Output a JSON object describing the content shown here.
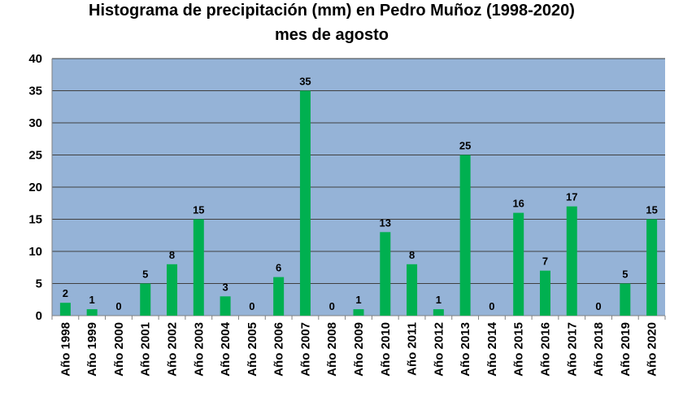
{
  "chart_data": {
    "type": "bar",
    "title": "Histograma de precipitación (mm) en Pedro Muñoz (1998-2020)",
    "subtitle": "mes de agosto",
    "xlabel": "",
    "ylabel": "",
    "ylim": [
      0,
      40
    ],
    "yticks": [
      0,
      5,
      10,
      15,
      20,
      25,
      30,
      35,
      40
    ],
    "grid": true,
    "legend": "none",
    "categories": [
      "Año 1998",
      "Año 1999",
      "Año 2000",
      "Año 2001",
      "Año 2002",
      "Año 2003",
      "Año 2004",
      "Año 2005",
      "Año 2006",
      "Año 2007",
      "Año 2008",
      "Año 2009",
      "Año 2010",
      "Año 2011",
      "Año 2012",
      "Año 2013",
      "Año 2014",
      "Año 2015",
      "Año 2016",
      "Año 2017",
      "Año 2018",
      "Año 2019",
      "Año 2020"
    ],
    "values": [
      2,
      1,
      0,
      5,
      8,
      15,
      3,
      0,
      6,
      35,
      0,
      1,
      13,
      8,
      1,
      25,
      0,
      16,
      7,
      17,
      0,
      5,
      15
    ],
    "colors": {
      "plot_background": "#95b3d7",
      "bar": "#00b050",
      "gridline": "#404040"
    }
  }
}
